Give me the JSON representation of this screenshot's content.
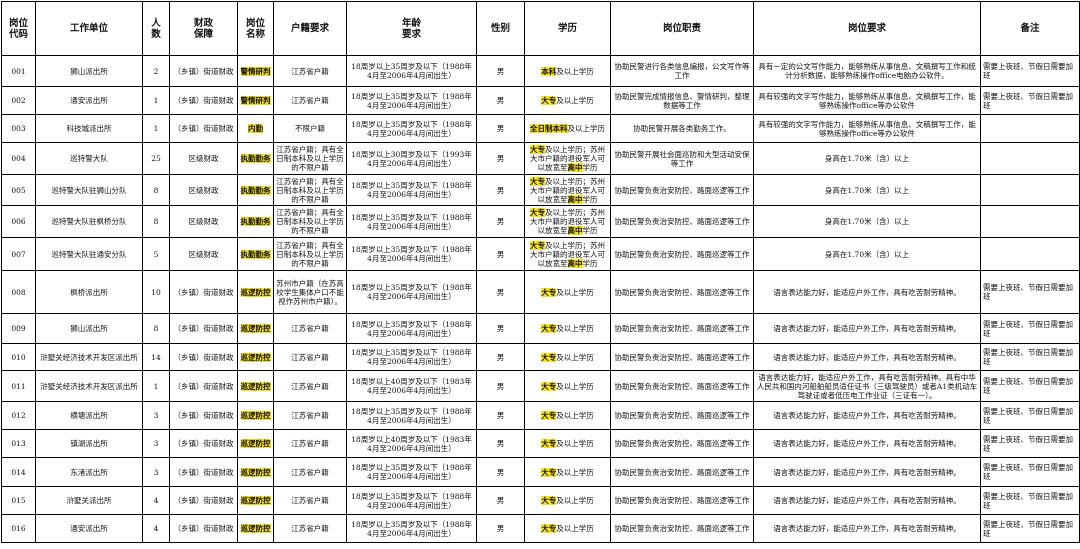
{
  "table": {
    "headers": [
      "岗位\n代码",
      "工作单位",
      "人\n数",
      "财政\n保障",
      "岗位\n名称",
      "户籍要求",
      "年龄\n要求",
      "性别",
      "学历",
      "岗位职责",
      "岗位要求",
      "备注"
    ],
    "rows": [
      {
        "code": "001",
        "unit": "狮山派出所",
        "count": 2,
        "finance": "（乡镇）街道财政",
        "position": "警情研判",
        "hukou": "江苏省户籍",
        "age": "18周岁以上35周岁及以下（1988年4月至2006年4月间出生）",
        "gender": "男",
        "education": [
          {
            "text": "本科",
            "highlight": true
          },
          {
            "text": "及以上学历",
            "highlight": false
          }
        ],
        "duties": "协助民警进行各类信息编报，公文写作等工作",
        "requirements": "具有一定的公文写作能力，能够熟练从事信息、文稿撰写工作和统计分析数据，能够熟练操作office电脑办公软件。",
        "notes": "需要上夜班、节假日需要加班"
      },
      {
        "code": "002",
        "unit": "通安派出所",
        "count": 1,
        "finance": "（乡镇）街道财政",
        "position": "警情研判",
        "hukou": "江苏省户籍",
        "age": "18周岁以上35周岁及以下（1988年4月至2006年4月间出生）",
        "gender": "男",
        "education": [
          {
            "text": "大专",
            "highlight": true
          },
          {
            "text": "及以上学历",
            "highlight": false
          }
        ],
        "duties": "协助民警完成情报信息、警情研判，整理数据等工作",
        "requirements": "具有较强的文字写作能力，能够熟练从事信息、文稿撰写工作，能够熟练操作office等办公软件",
        "notes": "需要上夜班、节假日需要加班"
      },
      {
        "code": "003",
        "unit": "科技城派出所",
        "count": 1,
        "finance": "（乡镇）街道财政",
        "position": "内勤",
        "hukou": "不限户籍",
        "age": "18周岁以上35周岁及以下（1988年4月至2006年4月间出生）",
        "gender": "男",
        "education": [
          {
            "text": "全日制本科",
            "highlight": true
          },
          {
            "text": "及以上学历",
            "highlight": false
          }
        ],
        "duties": "协助民警开展各类勤务工作。",
        "requirements": "具有较强的文字写作能力，能够熟练从事信息、文稿撰写工作，能够熟练操作office等办公软件"
      },
      {
        "code": "004",
        "unit": "巡特警大队",
        "count": 25,
        "finance": "区级财政",
        "position": "执勤勤务",
        "hukou": "江苏省户籍；具有全日制本科及以上学历的不限户籍",
        "age": "18周岁以上30周岁及以下（1993年4月至2006年4月间出生）",
        "gender": "男",
        "education": [
          {
            "text": "大专",
            "highlight": true
          },
          {
            "text": "及以上学历；苏州大市户籍的退役军人可以放宽至",
            "highlight": false
          },
          {
            "text": "高中",
            "highlight": true
          },
          {
            "text": "学历",
            "highlight": false
          }
        ],
        "duties": "协助民警开展社会面巡防和大型活动安保等工作",
        "requirements": "身高在1.70米（含）以上"
      },
      {
        "code": "005",
        "unit": "巡特警大队驻狮山分队",
        "count": 8,
        "finance": "区级财政",
        "position": "执勤勤务",
        "hukou": "江苏省户籍；具有全日制本科及以上学历的不限户籍",
        "age": "18周岁以上35周岁及以下（1988年4月至2006年4月间出生）",
        "gender": "男",
        "education": [
          {
            "text": "大专",
            "highlight": true
          },
          {
            "text": "及以上学历；苏州大市户籍的退役军人可以放宽至",
            "highlight": false
          },
          {
            "text": "高中",
            "highlight": true
          },
          {
            "text": "学历",
            "highlight": false
          }
        ],
        "duties": "协助民警负责治安防控、路面巡逻等工作",
        "requirements": "身高在1.70米（含）以上"
      },
      {
        "code": "006",
        "unit": "巡特警大队驻枫桥分队",
        "count": 8,
        "finance": "区级财政",
        "position": "执勤勤务",
        "hukou": "江苏省户籍；具有全日制本科及以上学历的不限户籍",
        "age": "18周岁以上35周岁及以下（1988年4月至2006年4月间出生）",
        "gender": "男",
        "education": [
          {
            "text": "大专",
            "highlight": true
          },
          {
            "text": "及以上学历；苏州大市户籍的退役军人可以放宽至",
            "highlight": false
          },
          {
            "text": "高中",
            "highlight": true
          },
          {
            "text": "学历",
            "highlight": false
          }
        ],
        "duties": "协助民警负责治安防控、路面巡逻等工作",
        "requirements": "身高在1.70米（含）以上"
      },
      {
        "code": "007",
        "unit": "巡特警大队驻通安分队",
        "count": 5,
        "finance": "区级财政",
        "position": "执勤勤务",
        "hukou": "江苏省户籍；具有全日制本科及以上学历的不限户籍",
        "age": "18周岁以上35周岁及以下（1988年4月至2006年4月间出生）",
        "gender": "男",
        "education": [
          {
            "text": "大专",
            "highlight": true
          },
          {
            "text": "及以上学历；苏州大市户籍的退役军人可以放宽至",
            "highlight": false
          },
          {
            "text": "高中",
            "highlight": true
          },
          {
            "text": "学历",
            "highlight": false
          }
        ],
        "duties": "协助民警负责治安防控、路面巡逻等工作",
        "requirements": "身高在1.70米（含）以上"
      },
      {
        "code": "008",
        "unit": "枫桥派出所",
        "count": 10,
        "finance": "（乡镇）街道财政",
        "position": "巡逻防控",
        "hukou": "苏州市户籍（在苏高校学生集体户口不能视作苏州市户籍）。",
        "age": "18周岁以上35周岁及以下（1988年4月至2006年4月间出生）",
        "gender": "男",
        "education": [
          {
            "text": "大专",
            "highlight": true
          },
          {
            "text": "及以上学历",
            "highlight": false
          }
        ],
        "duties": "协助民警负责治安防控、路面巡逻等工作",
        "requirements": "语言表达能力好，能适应户外工作，具有吃苦耐劳精神。",
        "notes": "需要上夜班、节假日需要加班"
      },
      {
        "code": "009",
        "unit": "狮山派出所",
        "count": 8,
        "finance": "（乡镇）街道财政",
        "position": "巡逻防控",
        "hukou": "江苏省户籍",
        "age": "18周岁以上35周岁及以下（1988年4月至2006年4月间出生）",
        "gender": "男",
        "education": [
          {
            "text": "大专",
            "highlight": true
          },
          {
            "text": "及以上学历",
            "highlight": false
          }
        ],
        "duties": "协助民警负责治安防控、路面巡逻等工作",
        "requirements": "语言表达能力好，能适应户外工作，具有吃苦耐劳精神。",
        "notes": "需要上夜班、节假日需要加班"
      },
      {
        "code": "010",
        "unit": "浒墅关经济技术开发区派出所",
        "count": 14,
        "finance": "（乡镇）街道财政",
        "position": "巡逻防控",
        "hukou": "江苏省户籍",
        "age": "18周岁以上35周岁及以下（1988年4月至2006年4月间出生）",
        "gender": "男",
        "education": [
          {
            "text": "大专",
            "highlight": true
          },
          {
            "text": "及以上学历",
            "highlight": false
          }
        ],
        "duties": "协助民警负责治安防控、路面巡逻等工作",
        "requirements": "语言表达能力好，能适应户外工作，具有吃苦耐劳精神。",
        "notes": "需要上夜班、节假日需要加班"
      },
      {
        "code": "011",
        "unit": "浒墅关经济技术开发区派出所",
        "count": 1,
        "finance": "（乡镇）街道财政",
        "position": "巡逻防控",
        "hukou": "江苏省户籍",
        "age": "18周岁以上40周岁及以下（1983年4月至2006年4月间出生）",
        "gender": "男",
        "education": [
          {
            "text": "大专",
            "highlight": true
          },
          {
            "text": "及以上学历",
            "highlight": false
          }
        ],
        "duties": "协助民警负责治安防控、路面巡逻等工作",
        "requirements": "语言表达能力好，能适应户外工作，具有吃苦耐劳精神。具有中华人民共和国内河船舶船员适任证书（三级驾驶员）或者A1类机动车驾驶证或者低压电工作业证（三证有一）。",
        "notes": "需要上夜班、节假日需要加班"
      },
      {
        "code": "012",
        "unit": "横塘派出所",
        "count": 3,
        "finance": "（乡镇）街道财政",
        "position": "巡逻防控",
        "hukou": "江苏省户籍",
        "age": "18周岁以上35周岁及以下（1988年4月至2006年4月间出生）",
        "gender": "男",
        "education": [
          {
            "text": "大专",
            "highlight": true
          },
          {
            "text": "及以上学历",
            "highlight": false
          }
        ],
        "duties": "协助民警负责治安防控、路面巡逻等工作",
        "requirements": "语言表达能力好，能适应户外工作，具有吃苦耐劳精神。",
        "notes": "需要上夜班、节假日需要加班"
      },
      {
        "code": "013",
        "unit": "镇湖派出所",
        "count": 3,
        "finance": "（乡镇）街道财政",
        "position": "巡逻防控",
        "hukou": "江苏省户籍",
        "age": "18周岁以上40周岁及以下（1983年4月至2006年4月间出生）",
        "gender": "男",
        "education": [
          {
            "text": "大专",
            "highlight": true
          },
          {
            "text": "及以上学历",
            "highlight": false
          }
        ],
        "duties": "协助民警负责治安防控、路面巡逻等工作",
        "requirements": "语言表达能力好，能适应户外工作，具有吃苦耐劳精神。",
        "notes": "需要上夜班、节假日需要加班"
      },
      {
        "code": "014",
        "unit": "东渚派出所",
        "count": 3,
        "finance": "（乡镇）街道财政",
        "position": "巡逻防控",
        "hukou": "江苏省户籍",
        "age": "18周岁以上35周岁及以下（1988年4月至2006年4月间出生）",
        "gender": "男",
        "education": [
          {
            "text": "大专",
            "highlight": true
          },
          {
            "text": "及以上学历",
            "highlight": false
          }
        ],
        "duties": "协助民警负责治安防控、路面巡逻等工作",
        "requirements": "语言表达能力好，能适应户外工作，具有吃苦耐劳精神。",
        "notes": "需要上夜班、节假日需要加班"
      },
      {
        "code": "015",
        "unit": "浒墅关派出所",
        "count": 4,
        "finance": "（乡镇）街道财政",
        "position": "巡逻防控",
        "hukou": "江苏省户籍",
        "age": "18周岁以上35周岁及以下（1988年4月至2006年4月间出生）",
        "gender": "男",
        "education": [
          {
            "text": "大专",
            "highlight": true
          },
          {
            "text": "及以上学历",
            "highlight": false
          }
        ],
        "duties": "协助民警负责治安防控、路面巡逻等工作",
        "requirements": "语言表达能力好，能适应户外工作，具有吃苦耐劳精神。",
        "notes": "需要上夜班、节假日需要加班"
      },
      {
        "code": "016",
        "unit": "通安派出所",
        "count": 4,
        "finance": "（乡镇）街道财政",
        "position": "巡逻防控",
        "hukou": "江苏省户籍",
        "age": "18周岁以上35周岁及以下（1988年4月至2006年4月间出生）",
        "gender": "男",
        "education": [
          {
            "text": "大专",
            "highlight": true
          },
          {
            "text": "及以上学历",
            "highlight": false
          }
        ],
        "duties": "协助民警负责治安防控、路面巡逻等工作",
        "requirements": "语言表达能力好，能适应户外工作，具有吃苦耐劳精神。",
        "notes": "需要上夜班、节假日需要加班"
      }
    ]
  }
}
